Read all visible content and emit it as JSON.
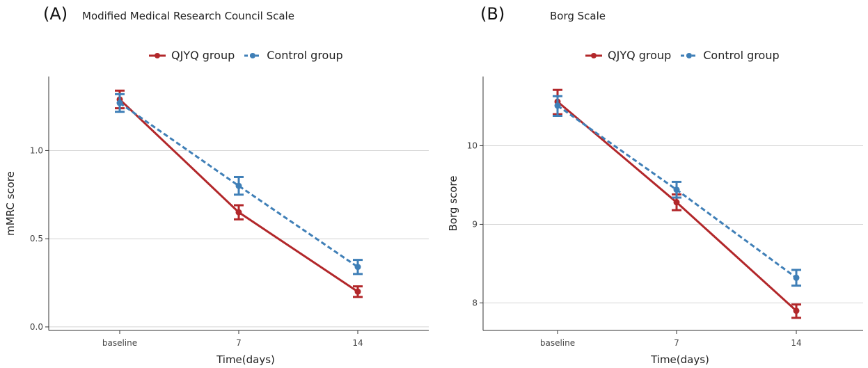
{
  "chart_data": [
    {
      "type": "line",
      "panel_label": "(A)",
      "title": "Modified Medical Research Council Scale",
      "xlabel": "Time(days)",
      "ylabel": "mMRC score",
      "categories": [
        "baseline",
        "7",
        "14"
      ],
      "ylim": [
        -0.02,
        1.42
      ],
      "yticks": [
        0.0,
        0.5,
        1.0
      ],
      "ytick_labels": [
        "0.0",
        "0.5",
        "1.0"
      ],
      "grid": "horizontal",
      "legend_position": "top",
      "series": [
        {
          "name": "QJYQ group",
          "color": "#b2272a",
          "line": "solid",
          "values": [
            1.29,
            0.65,
            0.2
          ],
          "lower": [
            1.24,
            0.61,
            0.17
          ],
          "upper": [
            1.34,
            0.69,
            0.23
          ]
        },
        {
          "name": "Control group",
          "color": "#3f7fb7",
          "line": "dashed",
          "values": [
            1.27,
            0.8,
            0.34
          ],
          "lower": [
            1.22,
            0.75,
            0.3
          ],
          "upper": [
            1.32,
            0.85,
            0.38
          ]
        }
      ]
    },
    {
      "type": "line",
      "panel_label": "(B)",
      "title": "Borg Scale",
      "xlabel": "Time(days)",
      "ylabel": "Borg score",
      "categories": [
        "baseline",
        "7",
        "14"
      ],
      "ylim": [
        7.65,
        10.88
      ],
      "yticks": [
        8,
        9,
        10
      ],
      "ytick_labels": [
        "8",
        "9",
        "10"
      ],
      "grid": "horizontal",
      "legend_position": "top",
      "series": [
        {
          "name": "QJYQ group",
          "color": "#b2272a",
          "line": "solid",
          "values": [
            10.56,
            9.28,
            7.9
          ],
          "lower": [
            10.4,
            9.18,
            7.81
          ],
          "upper": [
            10.71,
            9.38,
            7.98
          ]
        },
        {
          "name": "Control group",
          "color": "#3f7fb7",
          "line": "dashed",
          "values": [
            10.51,
            9.44,
            8.32
          ],
          "lower": [
            10.38,
            9.34,
            8.22
          ],
          "upper": [
            10.63,
            9.54,
            8.42
          ]
        }
      ]
    }
  ]
}
